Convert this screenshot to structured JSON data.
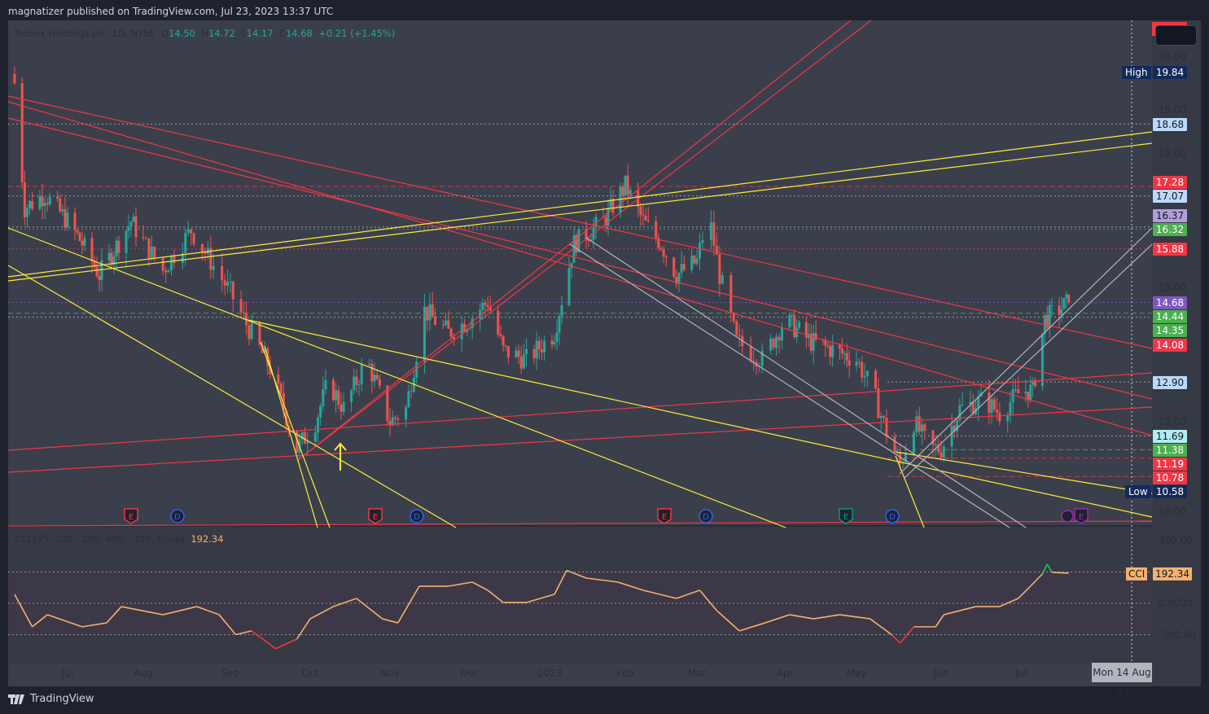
{
  "header": {
    "published": "magnatizer published on TradingView.com, Jul 23, 2023 13:37 UTC"
  },
  "legend": {
    "symbol": "Tronox Holdings plc, 1D, NYSE",
    "o_label": "O",
    "open": "14.50",
    "h_label": "H",
    "high": "14.72",
    "l_label": "L",
    "low": "14.17",
    "c_label": "C",
    "close": "14.68",
    "change": "+0.21 (+1.45%)"
  },
  "price_axis": {
    "ticks": [
      "20.00",
      "19.00",
      "18.00",
      "15.00",
      "12.00",
      "10.00"
    ]
  },
  "price_tags": [
    {
      "text": "18.68",
      "bg": "#bbd9fb",
      "fg": "#131722"
    },
    {
      "text": "17.28",
      "bg": "#f23645",
      "fg": "#ffffff"
    },
    {
      "text": "17.07",
      "bg": "#bbd9fb",
      "fg": "#131722"
    },
    {
      "text": "16.37",
      "bg": "#b39ddb",
      "fg": "#131722"
    },
    {
      "text": "16.32",
      "bg": "#4caf50",
      "fg": "#ffffff"
    },
    {
      "text": "15.88",
      "bg": "#f23645",
      "fg": "#ffffff"
    },
    {
      "text": "14.68",
      "bg": "#7e57c2",
      "fg": "#ffffff"
    },
    {
      "text": "14.44",
      "bg": "#4caf50",
      "fg": "#ffffff"
    },
    {
      "text": "14.35",
      "bg": "#4caf50",
      "fg": "#ffffff"
    },
    {
      "text": "14.08",
      "bg": "#f23645",
      "fg": "#ffffff"
    },
    {
      "text": "12.90",
      "bg": "#bbd9fb",
      "fg": "#131722"
    },
    {
      "text": "11.69",
      "bg": "#b2ebf2",
      "fg": "#131722"
    },
    {
      "text": "11.38",
      "bg": "#4caf50",
      "fg": "#ffffff"
    },
    {
      "text": "11.19",
      "bg": "#f23645",
      "fg": "#ffffff"
    },
    {
      "text": "10.78",
      "bg": "#f23645",
      "fg": "#ffffff"
    }
  ],
  "high_label": {
    "label": "High",
    "value": "19.84"
  },
  "low_label": {
    "label": "Low",
    "value": "10.58"
  },
  "cci": {
    "legend": "CCI (55, 200, -200, 400, -300, close)",
    "value": "192.34",
    "tag_label": "CCI",
    "ticks": [
      "400.00",
      "0.0000",
      "-200.00"
    ]
  },
  "time_axis": {
    "months": [
      "Jul",
      "Aug",
      "Sep",
      "Oct",
      "Nov",
      "Dec",
      "2023",
      "Feb",
      "Mar",
      "Apr",
      "May",
      "Jun",
      "Jul"
    ],
    "cursor_date": "Mon 14 Aug '23"
  },
  "events": [
    {
      "type": "E",
      "color": "#f23645"
    },
    {
      "type": "D",
      "color": "#2962ff"
    },
    {
      "type": "E",
      "color": "#f23645"
    },
    {
      "type": "D",
      "color": "#2962ff"
    },
    {
      "type": "E",
      "color": "#f23645"
    },
    {
      "type": "D",
      "color": "#2962ff"
    },
    {
      "type": "E",
      "color": "#089981"
    },
    {
      "type": "D",
      "color": "#2962ff"
    },
    {
      "type": "E",
      "color": "#9c27b0"
    }
  ],
  "brand": "TradingView",
  "colors": {
    "up": "#26a69a",
    "down": "#ef5350",
    "cci_line": "#f5b06d",
    "cci_over": "#22c55e",
    "cci_under": "#f23645",
    "trend_red": "#f23645",
    "trend_yellow": "#ffeb3b",
    "trend_gray": "#b2b5be"
  },
  "chart_data": {
    "type": "candlestick",
    "title": "Tronox Holdings plc, 1D, NYSE",
    "ylim": [
      9.8,
      20.8
    ],
    "grid": false,
    "price_anchors": [
      [
        "2022-06-10",
        19.6
      ],
      [
        "2022-06-14",
        16.8
      ],
      [
        "2022-06-22",
        17.1
      ],
      [
        "2022-07-01",
        16.5
      ],
      [
        "2022-07-07",
        16.0
      ],
      [
        "2022-07-14",
        15.3
      ],
      [
        "2022-07-27",
        16.5
      ],
      [
        "2022-08-08",
        15.4
      ],
      [
        "2022-08-18",
        16.3
      ],
      [
        "2022-08-25",
        15.6
      ],
      [
        "2022-09-01",
        14.9
      ],
      [
        "2022-09-07",
        14.2
      ],
      [
        "2022-09-16",
        13.2
      ],
      [
        "2022-09-26",
        11.4
      ],
      [
        "2022-10-03",
        12.0
      ],
      [
        "2022-10-08",
        12.9
      ],
      [
        "2022-10-14",
        12.3
      ],
      [
        "2022-10-23",
        13.4
      ],
      [
        "2022-11-01",
        12.0
      ],
      [
        "2022-11-07",
        12.3
      ],
      [
        "2022-11-14",
        14.5
      ],
      [
        "2022-11-23",
        14.0
      ],
      [
        "2022-12-01",
        14.3
      ],
      [
        "2022-12-08",
        14.7
      ],
      [
        "2022-12-14",
        13.6
      ],
      [
        "2022-12-23",
        13.4
      ],
      [
        "2023-01-03",
        14.0
      ],
      [
        "2023-01-11",
        16.0
      ],
      [
        "2023-01-23",
        16.5
      ],
      [
        "2023-02-01",
        17.3
      ],
      [
        "2023-02-08",
        16.5
      ],
      [
        "2023-02-15",
        16.0
      ],
      [
        "2023-02-21",
        15.3
      ],
      [
        "2023-03-01",
        15.6
      ],
      [
        "2023-03-05",
        16.7
      ],
      [
        "2023-03-09",
        15.3
      ],
      [
        "2023-03-15",
        13.8
      ],
      [
        "2023-03-24",
        13.4
      ],
      [
        "2023-04-01",
        14.3
      ],
      [
        "2023-04-12",
        13.8
      ],
      [
        "2023-04-22",
        13.6
      ],
      [
        "2023-05-01",
        13.4
      ],
      [
        "2023-05-07",
        12.7
      ],
      [
        "2023-05-13",
        11.6
      ],
      [
        "2023-05-17",
        11.05
      ],
      [
        "2023-05-22",
        12.0
      ],
      [
        "2023-05-28",
        11.4
      ],
      [
        "2023-06-01",
        11.4
      ],
      [
        "2023-06-08",
        12.3
      ],
      [
        "2023-06-17",
        12.5
      ],
      [
        "2023-06-23",
        12.2
      ],
      [
        "2023-07-01",
        12.7
      ],
      [
        "2023-07-06",
        12.7
      ],
      [
        "2023-07-11",
        14.3
      ],
      [
        "2023-07-21",
        14.68
      ]
    ],
    "cci_ylim": [
      -380,
      460
    ],
    "cci_anchors": [
      [
        "2022-06-10",
        57
      ],
      [
        "2022-06-17",
        -150
      ],
      [
        "2022-06-23",
        -73
      ],
      [
        "2022-07-07",
        -150
      ],
      [
        "2022-07-17",
        -125
      ],
      [
        "2022-07-23",
        -21
      ],
      [
        "2022-08-08",
        -73
      ],
      [
        "2022-08-20",
        -21
      ],
      [
        "2022-08-28",
        -73
      ],
      [
        "2022-09-03",
        -200
      ],
      [
        "2022-09-09",
        -176
      ],
      [
        "2022-09-18",
        -290
      ],
      [
        "2022-09-26",
        -228
      ],
      [
        "2022-10-01",
        -99
      ],
      [
        "2022-10-10",
        -21
      ],
      [
        "2022-10-19",
        31
      ],
      [
        "2022-10-29",
        -99
      ],
      [
        "2022-11-04",
        -125
      ],
      [
        "2022-11-12",
        109
      ],
      [
        "2022-11-23",
        109
      ],
      [
        "2022-12-02",
        135
      ],
      [
        "2022-12-08",
        83
      ],
      [
        "2022-12-14",
        5
      ],
      [
        "2022-12-23",
        5
      ],
      [
        "2023-01-03",
        57
      ],
      [
        "2023-01-08",
        210
      ],
      [
        "2023-01-16",
        161
      ],
      [
        "2023-01-29",
        135
      ],
      [
        "2023-02-08",
        83
      ],
      [
        "2023-02-21",
        31
      ],
      [
        "2023-03-02",
        83
      ],
      [
        "2023-03-08",
        -47
      ],
      [
        "2023-03-16",
        -176
      ],
      [
        "2023-03-25",
        -125
      ],
      [
        "2023-04-03",
        -73
      ],
      [
        "2023-04-13",
        -99
      ],
      [
        "2023-04-24",
        -73
      ],
      [
        "2023-05-06",
        -99
      ],
      [
        "2023-05-14",
        -202
      ],
      [
        "2023-05-17",
        -254
      ],
      [
        "2023-05-22",
        -150
      ],
      [
        "2023-05-30",
        -150
      ],
      [
        "2023-06-02",
        -73
      ],
      [
        "2023-06-14",
        -21
      ],
      [
        "2023-06-23",
        -21
      ],
      [
        "2023-06-30",
        31
      ],
      [
        "2023-07-05",
        109
      ],
      [
        "2023-07-10",
        187
      ],
      [
        "2023-07-12",
        250
      ],
      [
        "2023-07-14",
        197
      ],
      [
        "2023-07-21",
        192.34
      ]
    ]
  }
}
